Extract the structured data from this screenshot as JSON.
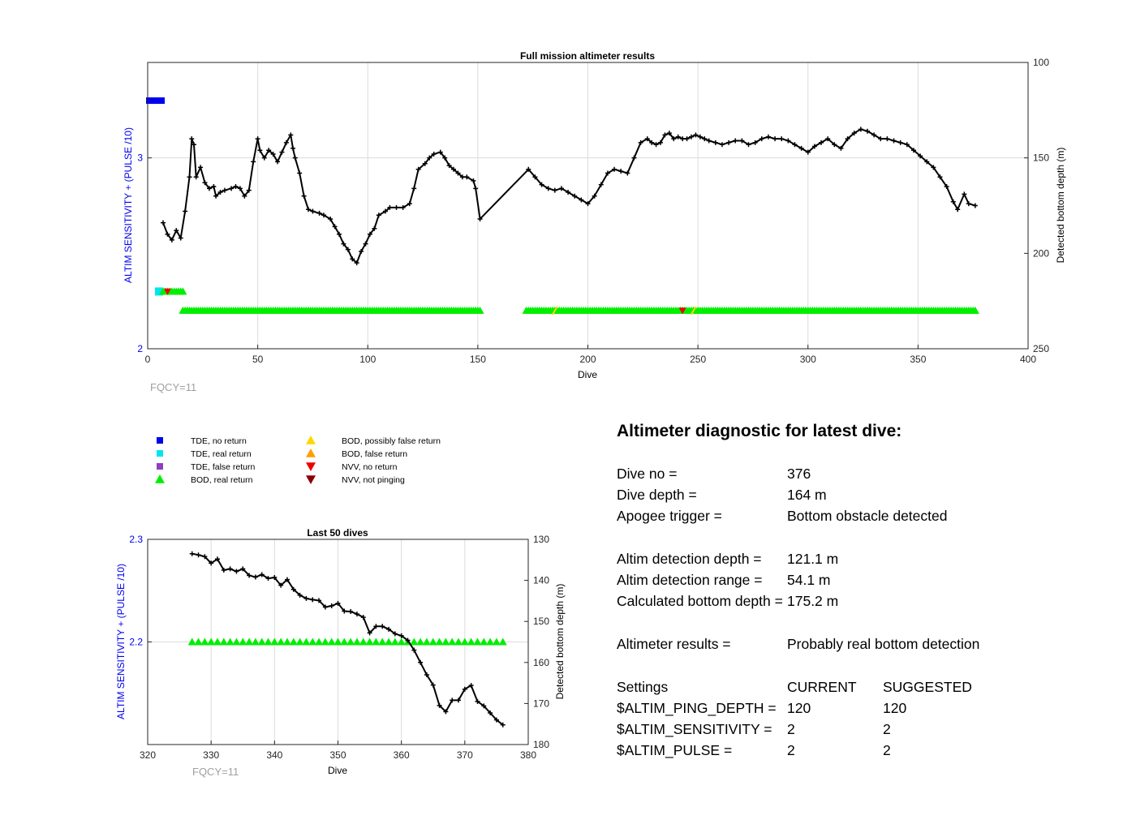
{
  "main_chart": {
    "title": "Full mission altimeter results",
    "xlabel": "Dive",
    "ylabel_left": "ALTIM SENSITIVITY + (PULSE /10)",
    "ylabel_right": "Detected bottom depth (m)",
    "footnote": "FQCY=11",
    "xticks": [
      "0",
      "50",
      "100",
      "150",
      "200",
      "250",
      "300",
      "350",
      "400"
    ],
    "yticks_left": [
      "2",
      "3"
    ],
    "yticks_right": [
      "100",
      "150",
      "200",
      "250"
    ]
  },
  "zoom_chart": {
    "title": "Last 50 dives",
    "xlabel": "Dive",
    "ylabel_left": "ALTIM SENSITIVITY + (PULSE /10)",
    "ylabel_right": "Detected bottom depth (m)",
    "footnote": "FQCY=11",
    "xticks": [
      "320",
      "330",
      "340",
      "350",
      "360",
      "370",
      "380"
    ],
    "yticks_left": [
      "2.2",
      "2.3"
    ],
    "yticks_right": [
      "130",
      "140",
      "150",
      "160",
      "170",
      "180"
    ]
  },
  "legend": [
    {
      "label": "TDE, no return",
      "color": "#0000ee",
      "marker": "square"
    },
    {
      "label": "TDE, real return",
      "color": "#00e5ee",
      "marker": "square"
    },
    {
      "label": "TDE, false return",
      "color": "#8e3fbf",
      "marker": "square"
    },
    {
      "label": "BOD, real return",
      "color": "#00ee00",
      "marker": "triangle-up"
    },
    {
      "label": "BOD, possibly false return",
      "color": "#ffd700",
      "marker": "triangle-up"
    },
    {
      "label": "BOD, false return",
      "color": "#ff9f00",
      "marker": "triangle-up"
    },
    {
      "label": "NVV, no return",
      "color": "#ee0000",
      "marker": "triangle-down"
    },
    {
      "label": "NVV, not pinging",
      "color": "#8b0000",
      "marker": "triangle-down"
    }
  ],
  "diagnostic": {
    "title": "Altimeter diagnostic for latest dive:",
    "dive_no_label": "Dive no =",
    "dive_no": "376",
    "dive_depth_label": "Dive depth =",
    "dive_depth": "164 m",
    "apogee_label": "Apogee trigger =",
    "apogee": "Bottom obstacle detected",
    "det_depth_label": "Altim detection depth =",
    "det_depth": "121.1 m",
    "det_range_label": "Altim detection range =",
    "det_range": "54.1 m",
    "calc_label": "Calculated bottom depth =",
    "calc": "175.2 m",
    "results_label": "Altimeter results =",
    "results": "Probably real bottom detection",
    "settings_label": "Settings",
    "current_label": "CURRENT",
    "suggested_label": "SUGGESTED",
    "ping_label": "$ALTIM_PING_DEPTH =",
    "ping_cur": "120",
    "ping_sug": "120",
    "sens_label": "$ALTIM_SENSITIVITY =",
    "sens_cur": "2",
    "sens_sug": "2",
    "pulse_label": "$ALTIM_PULSE =",
    "pulse_cur": "2",
    "pulse_sug": "2"
  },
  "chart_data": [
    {
      "type": "scatter",
      "title": "Full mission altimeter results",
      "xlabel": "Dive",
      "ylabel": "ALTIM SENSITIVITY + (PULSE /10)",
      "y2label": "Detected bottom depth (m)",
      "xlim": [
        0,
        400
      ],
      "ylim": [
        2,
        3.5
      ],
      "y2lim": [
        250,
        100
      ],
      "grid": true,
      "bottom_depth": {
        "name": "Detected bottom depth (m)",
        "x": [
          7,
          9,
          11,
          13,
          15,
          17,
          19,
          20,
          21,
          22,
          24,
          26,
          28,
          30,
          31,
          33,
          35,
          38,
          40,
          42,
          44,
          46,
          48,
          50,
          51,
          53,
          55,
          57,
          59,
          61,
          63,
          65,
          66,
          67,
          69,
          71,
          73,
          75,
          78,
          80,
          83,
          85,
          87,
          89,
          91,
          93,
          95,
          97,
          99,
          101,
          103,
          105,
          108,
          110,
          113,
          116,
          119,
          121,
          123,
          126,
          128,
          130,
          133,
          135,
          137,
          139,
          141,
          143,
          145,
          148,
          149,
          151,
          173,
          176,
          179,
          182,
          185,
          188,
          191,
          194,
          197,
          200,
          203,
          206,
          209,
          212,
          215,
          218,
          221,
          224,
          227,
          229,
          231,
          233,
          235,
          237,
          239,
          241,
          243,
          245,
          247,
          249,
          251,
          253,
          255,
          258,
          261,
          264,
          267,
          270,
          273,
          276,
          279,
          282,
          285,
          288,
          291,
          294,
          297,
          300,
          303,
          306,
          309,
          312,
          315,
          318,
          321,
          324,
          327,
          330,
          333,
          336,
          339,
          342,
          345,
          348,
          351,
          354,
          357,
          360,
          363,
          366,
          368,
          371,
          373,
          376
        ],
        "y": [
          184,
          190,
          193,
          188,
          192,
          178,
          160,
          140,
          143,
          160,
          155,
          163,
          166,
          165,
          170,
          168,
          167,
          166,
          165,
          166,
          170,
          167,
          152,
          140,
          146,
          150,
          146,
          148,
          152,
          147,
          142,
          138,
          145,
          150,
          158,
          170,
          177,
          178,
          179,
          180,
          182,
          186,
          190,
          195,
          198,
          203,
          205,
          199,
          195,
          190,
          187,
          180,
          178,
          176,
          176,
          176,
          174,
          166,
          156,
          153,
          150,
          148,
          147,
          150,
          154,
          156,
          158,
          160,
          160,
          162,
          166,
          182,
          156,
          160,
          164,
          166,
          167,
          166,
          168,
          170,
          172,
          174,
          170,
          164,
          158,
          156,
          157,
          158,
          150,
          142,
          140,
          142,
          143,
          142,
          138,
          137,
          140,
          139,
          140,
          140,
          139,
          138,
          139,
          140,
          141,
          142,
          143,
          142,
          141,
          141,
          143,
          142,
          140,
          139,
          140,
          140,
          141,
          143,
          145,
          147,
          144,
          142,
          140,
          143,
          145,
          140,
          137,
          135,
          136,
          138,
          140,
          140,
          141,
          142,
          143,
          146,
          149,
          152,
          155,
          160,
          165,
          173,
          177,
          169,
          174,
          175
        ]
      },
      "markers": [
        {
          "type": "TDE, no return",
          "x": [
            0,
            7
          ],
          "y": 3.3
        },
        {
          "type": "TDE, real return",
          "x": [
            7,
            7
          ],
          "y": 2.3
        },
        {
          "type": "BOD, real return",
          "x": [
            7,
            16
          ],
          "y": 2.3
        },
        {
          "type": "NVV, no return",
          "x": [
            9
          ],
          "y": 2.3
        },
        {
          "type": "BOD, real return",
          "x": [
            16,
            151
          ],
          "y": 2.2
        },
        {
          "type": "BOD, real return",
          "x": [
            172,
            376
          ],
          "y": 2.2
        },
        {
          "type": "BOD, possibly false return",
          "x": [
            185
          ],
          "y": 2.2
        },
        {
          "type": "BOD, possibly false return",
          "x": [
            248
          ],
          "y": 2.2
        },
        {
          "type": "NVV, no return",
          "x": [
            243
          ],
          "y": 2.2
        }
      ]
    },
    {
      "type": "scatter",
      "title": "Last 50 dives",
      "xlabel": "Dive",
      "ylabel": "ALTIM SENSITIVITY + (PULSE /10)",
      "y2label": "Detected bottom depth (m)",
      "xlim": [
        320,
        380
      ],
      "ylim": [
        2.1,
        2.3
      ],
      "y2lim": [
        180,
        130
      ],
      "grid": true,
      "bottom_depth": {
        "name": "Detected bottom depth (m)",
        "x": [
          327,
          328,
          329,
          330,
          331,
          332,
          333,
          334,
          335,
          336,
          337,
          338,
          339,
          340,
          341,
          342,
          343,
          344,
          345,
          346,
          347,
          348,
          349,
          350,
          351,
          352,
          353,
          354,
          355,
          356,
          357,
          358,
          359,
          360,
          361,
          362,
          363,
          364,
          365,
          366,
          367,
          368,
          369,
          370,
          371,
          372,
          373,
          374,
          375,
          376
        ],
        "y": [
          133.5,
          133.8,
          134.2,
          135.8,
          134.8,
          137.5,
          137.2,
          137.8,
          137.2,
          138.8,
          139.2,
          138.6,
          139.5,
          139.3,
          141.2,
          139.8,
          142.2,
          143.6,
          144.4,
          144.7,
          144.9,
          146.5,
          146.2,
          145.6,
          147.5,
          147.6,
          148.2,
          149.0,
          152.8,
          151.2,
          151.2,
          151.9,
          153.0,
          153.5,
          154.6,
          157.0,
          160.0,
          163.0,
          165.5,
          170.5,
          172.0,
          169.2,
          169.2,
          166.5,
          165.6,
          169.5,
          170.6,
          172.3,
          174.0,
          175.2
        ]
      },
      "markers": [
        {
          "type": "BOD, real return",
          "x": [
            327,
            376
          ],
          "y": 2.2
        }
      ]
    }
  ]
}
